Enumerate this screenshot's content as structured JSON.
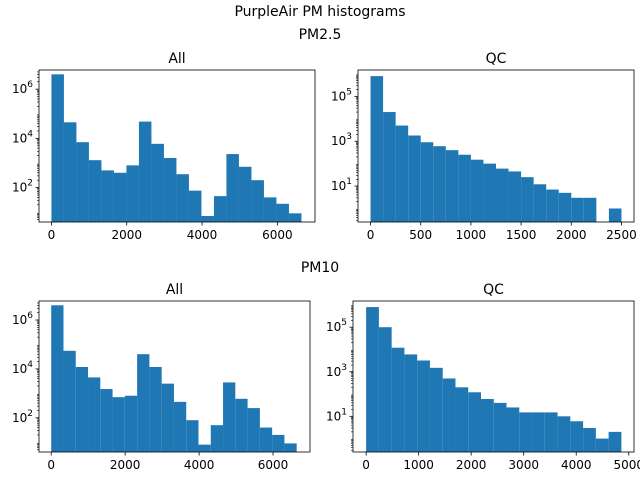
{
  "figure": {
    "title": "PurpleAir PM histograms"
  },
  "rows": [
    {
      "label": "PM2.5"
    },
    {
      "label": "PM10"
    }
  ],
  "chart_data": [
    {
      "type": "bar",
      "row": 0,
      "col": 0,
      "title": "All",
      "xlabel": "",
      "ylabel": "",
      "yscale": "log",
      "xlim": [
        -330,
        7000
      ],
      "ylim": [
        4,
        6000000
      ],
      "xticks": [
        0,
        2000,
        4000,
        6000
      ],
      "yticks": [
        100,
        10000,
        1000000
      ],
      "yticklabels": [
        "10^2",
        "10^4",
        "10^6"
      ],
      "bin_edges": [
        0,
        332,
        664,
        996,
        1328,
        1660,
        1992,
        2324,
        2656,
        2988,
        3320,
        3652,
        3984,
        4316,
        4648,
        4980,
        5312,
        5644,
        5976,
        6308,
        6640
      ],
      "values": [
        4000000,
        45000,
        7000,
        1300,
        500,
        400,
        800,
        48000,
        6000,
        1600,
        350,
        75,
        7,
        45,
        2300,
        700,
        200,
        40,
        22,
        9
      ],
      "color": "#1f77b4"
    },
    {
      "type": "bar",
      "row": 0,
      "col": 1,
      "title": "QC",
      "xlabel": "",
      "ylabel": "",
      "yscale": "log",
      "xlim": [
        -125,
        2625
      ],
      "ylim": [
        0.25,
        1500000
      ],
      "xticks": [
        0,
        500,
        1000,
        1500,
        2000,
        2500
      ],
      "yticks": [
        10,
        1000,
        100000
      ],
      "yticklabels": [
        "10^1",
        "10^3",
        "10^5"
      ],
      "bin_edges": [
        0,
        125,
        250,
        375,
        500,
        625,
        750,
        875,
        1000,
        1125,
        1250,
        1375,
        1500,
        1625,
        1750,
        1875,
        2000,
        2125,
        2250,
        2375,
        2500
      ],
      "values": [
        800000,
        20000,
        5000,
        1800,
        900,
        600,
        400,
        250,
        150,
        100,
        60,
        45,
        25,
        12,
        7,
        5,
        3,
        3,
        0,
        1
      ],
      "color": "#1f77b4"
    },
    {
      "type": "bar",
      "row": 1,
      "col": 0,
      "title": "All",
      "xlabel": "",
      "ylabel": "",
      "yscale": "log",
      "xlim": [
        -330,
        7000
      ],
      "ylim": [
        4,
        6000000
      ],
      "xticks": [
        0,
        2000,
        4000,
        6000
      ],
      "yticks": [
        100,
        10000,
        1000000
      ],
      "yticklabels": [
        "10^2",
        "10^4",
        "10^6"
      ],
      "bin_edges": [
        0,
        332,
        664,
        996,
        1328,
        1660,
        1992,
        2324,
        2656,
        2988,
        3320,
        3652,
        3984,
        4316,
        4648,
        4980,
        5312,
        5644,
        5976,
        6308,
        6640
      ],
      "values": [
        4000000,
        55000,
        12000,
        4500,
        1500,
        700,
        800,
        40000,
        12000,
        2500,
        450,
        80,
        8,
        50,
        2800,
        600,
        250,
        40,
        20,
        9
      ],
      "color": "#1f77b4"
    },
    {
      "type": "bar",
      "row": 1,
      "col": 1,
      "title": "QC",
      "xlabel": "",
      "ylabel": "",
      "yscale": "log",
      "xlim": [
        -250,
        5100
      ],
      "ylim": [
        0.25,
        1500000
      ],
      "xticks": [
        0,
        1000,
        2000,
        3000,
        4000,
        5000
      ],
      "yticks": [
        10,
        1000,
        100000
      ],
      "yticklabels": [
        "10^1",
        "10^3",
        "10^5"
      ],
      "bin_edges": [
        0,
        243,
        486,
        729,
        972,
        1215,
        1458,
        1701,
        1944,
        2187,
        2430,
        2673,
        2916,
        3159,
        3402,
        3645,
        3888,
        4131,
        4374,
        4617,
        4860
      ],
      "values": [
        800000,
        100000,
        12000,
        6000,
        3200,
        1500,
        500,
        200,
        120,
        60,
        40,
        25,
        15,
        15,
        15,
        10,
        6,
        3,
        1,
        2
      ],
      "color": "#1f77b4"
    }
  ]
}
